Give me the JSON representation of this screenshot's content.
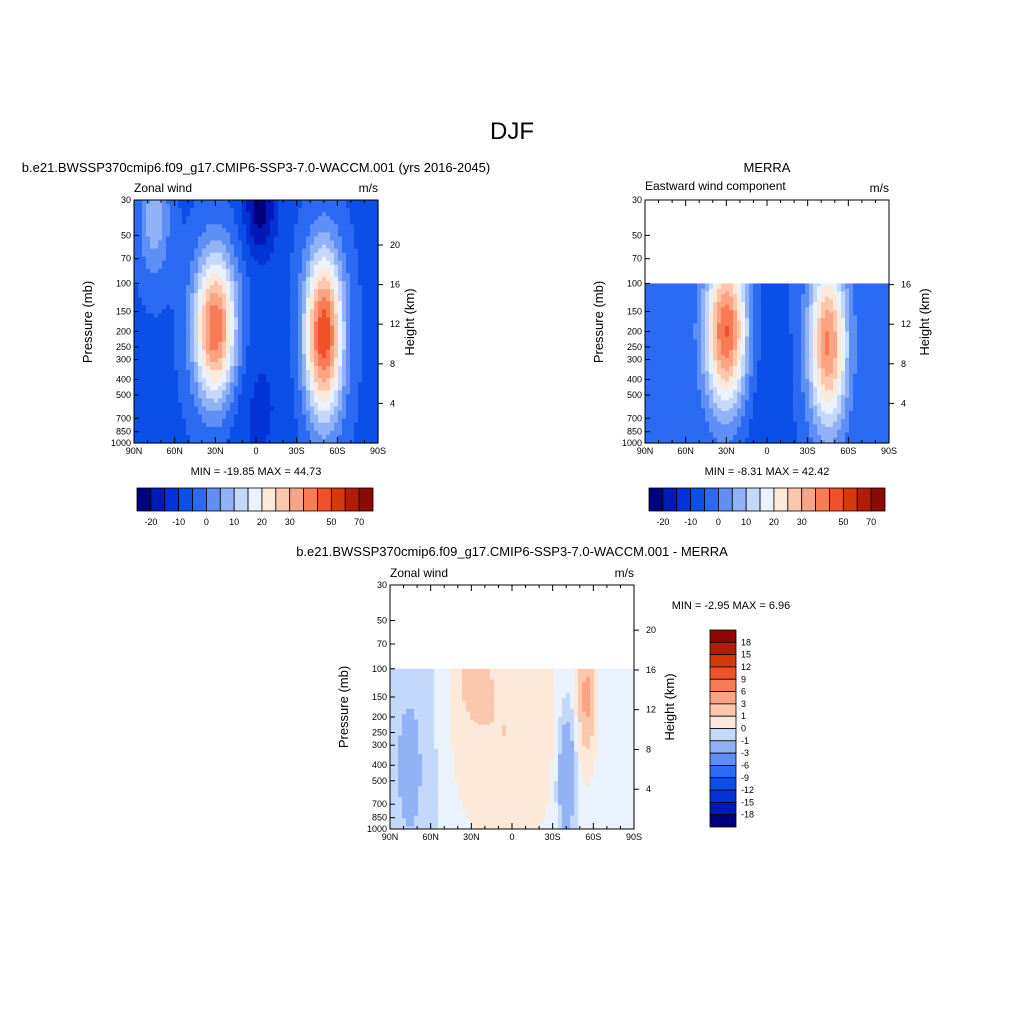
{
  "page": {
    "title": "DJF"
  },
  "colors": {
    "diverging": [
      "#00007f",
      "#0019b8",
      "#0133d6",
      "#0a50e8",
      "#2b6af2",
      "#5e8ff5",
      "#92b2f7",
      "#c3d8fa",
      "#eaf2fd",
      "#fde9da",
      "#fcc8ad",
      "#fba483",
      "#f77b55",
      "#ef5228",
      "#d63a0a",
      "#b01f05",
      "#8c0a03"
    ],
    "blank": "#ffffff"
  },
  "panels": [
    {
      "id": "model",
      "title": "b.e21.BWSSP370cmip6.f09_g17.CMIP6-SSP3-7.0-WACCM.001 (yrs 2016-2045)",
      "left_label": "Zonal wind",
      "units": "m/s",
      "ylabel": "Pressure (mb)",
      "y2label": "Height (km)",
      "minmax": "MIN = -19.85  MAX =  44.73",
      "colorbar_labels": [
        "-20",
        "-10",
        "0",
        "10",
        "20",
        "30",
        "50",
        "70"
      ]
    },
    {
      "id": "obs",
      "title": "MERRA",
      "left_label": "Eastward wind component",
      "units": "m/s",
      "ylabel": "Pressure (mb)",
      "y2label": "Height (km)",
      "minmax": "MIN =  -8.31  MAX =  42.42",
      "colorbar_labels": [
        "-20",
        "-10",
        "0",
        "10",
        "20",
        "30",
        "50",
        "70"
      ]
    },
    {
      "id": "diff",
      "title": "b.e21.BWSSP370cmip6.f09_g17.CMIP6-SSP3-7.0-WACCM.001 - MERRA",
      "left_label": "Zonal wind",
      "units": "m/s",
      "ylabel": "Pressure (mb)",
      "y2label": "Height (km)",
      "minmax": "MIN =  -2.95  MAX =   6.96",
      "colorbar_labels": [
        "18",
        "15",
        "12",
        "9",
        "6",
        "3",
        "1",
        "0",
        "-1",
        "-3",
        "-6",
        "-9",
        "-12",
        "-15",
        "-18"
      ]
    }
  ],
  "chart_data": [
    {
      "type": "heatmap",
      "title": "b.e21.BWSSP370cmip6.f09_g17.CMIP6-SSP3-7.0-WACCM.001 (yrs 2016-2045)",
      "variable": "Zonal wind",
      "units": "m/s",
      "x_ticks": [
        "90N",
        "60N",
        "30N",
        "0",
        "30S",
        "60S",
        "90S"
      ],
      "y_ticks": [
        "30",
        "50",
        "70",
        "100",
        "150",
        "200",
        "250",
        "300",
        "400",
        "500",
        "700",
        "850",
        "1000"
      ],
      "y2_ticks": [
        "4",
        "8",
        "12",
        "16",
        "20"
      ],
      "xlabel": "",
      "ylabel": "Pressure (mb)",
      "y2label": "Height (km)",
      "ylim": [
        1000,
        30
      ],
      "log_y": true,
      "min": -19.85,
      "max": 44.73,
      "contour_levels": [
        -20,
        -15,
        -10,
        -5,
        0,
        5,
        10,
        15,
        20,
        25,
        30,
        35,
        40,
        45,
        50,
        60,
        70
      ],
      "colorbar_labels": [
        "-20",
        "-10",
        "0",
        "10",
        "20",
        "30",
        "50",
        "70"
      ],
      "features": [
        {
          "kind": "jet",
          "lat": -30,
          "p": 200,
          "value": 40
        },
        {
          "kind": "jet",
          "lat": 52,
          "p": 200,
          "value": 44.73
        },
        {
          "kind": "easterly",
          "lat": 5,
          "p": 30,
          "value": -19.85
        }
      ]
    },
    {
      "type": "heatmap",
      "title": "MERRA",
      "variable": "Eastward wind component",
      "units": "m/s",
      "x_ticks": [
        "90N",
        "60N",
        "30N",
        "0",
        "30S",
        "60S",
        "90S"
      ],
      "y_ticks": [
        "30",
        "50",
        "70",
        "100",
        "150",
        "200",
        "250",
        "300",
        "400",
        "500",
        "700",
        "850",
        "1000"
      ],
      "y2_ticks": [
        "4",
        "8",
        "12",
        "16"
      ],
      "xlabel": "",
      "ylabel": "Pressure (mb)",
      "y2label": "Height (km)",
      "ylim": [
        1000,
        30
      ],
      "data_top_pressure": 100,
      "log_y": true,
      "min": -8.31,
      "max": 42.42,
      "contour_levels": [
        -20,
        -15,
        -10,
        -5,
        0,
        5,
        10,
        15,
        20,
        25,
        30,
        35,
        40,
        45,
        50,
        60,
        70
      ],
      "colorbar_labels": [
        "-20",
        "-10",
        "0",
        "10",
        "20",
        "30",
        "50",
        "70"
      ],
      "features": [
        {
          "kind": "jet",
          "lat": -30,
          "p": 200,
          "value": 42.42
        },
        {
          "kind": "jet",
          "lat": 45,
          "p": 250,
          "value": 35
        }
      ]
    },
    {
      "type": "heatmap",
      "title": "b.e21.BWSSP370cmip6.f09_g17.CMIP6-SSP3-7.0-WACCM.001 - MERRA",
      "variable": "Zonal wind",
      "units": "m/s",
      "x_ticks": [
        "90N",
        "60N",
        "30N",
        "0",
        "30S",
        "60S",
        "90S"
      ],
      "y_ticks": [
        "30",
        "50",
        "70",
        "100",
        "150",
        "200",
        "250",
        "300",
        "400",
        "500",
        "700",
        "850",
        "1000"
      ],
      "y2_ticks": [
        "4",
        "8",
        "12",
        "16",
        "20"
      ],
      "xlabel": "",
      "ylabel": "Pressure (mb)",
      "y2label": "Height (km)",
      "ylim": [
        1000,
        30
      ],
      "data_top_pressure": 100,
      "log_y": true,
      "min": -2.95,
      "max": 6.96,
      "contour_levels": [
        -18,
        -15,
        -12,
        -9,
        -6,
        -3,
        -1,
        0,
        1,
        3,
        6,
        9,
        12,
        15,
        18
      ],
      "colorbar_labels": [
        "18",
        "15",
        "12",
        "9",
        "6",
        "3",
        "1",
        "0",
        "-1",
        "-3",
        "-6",
        "-9",
        "-12",
        "-15",
        "-18"
      ],
      "features": [
        {
          "kind": "positive",
          "lat": 55,
          "p": 150,
          "value": 6.96
        },
        {
          "kind": "positive",
          "lat": -30,
          "p": 100,
          "value": 4
        },
        {
          "kind": "negative",
          "lat": 40,
          "p": 500,
          "value": -2.95
        }
      ]
    }
  ]
}
